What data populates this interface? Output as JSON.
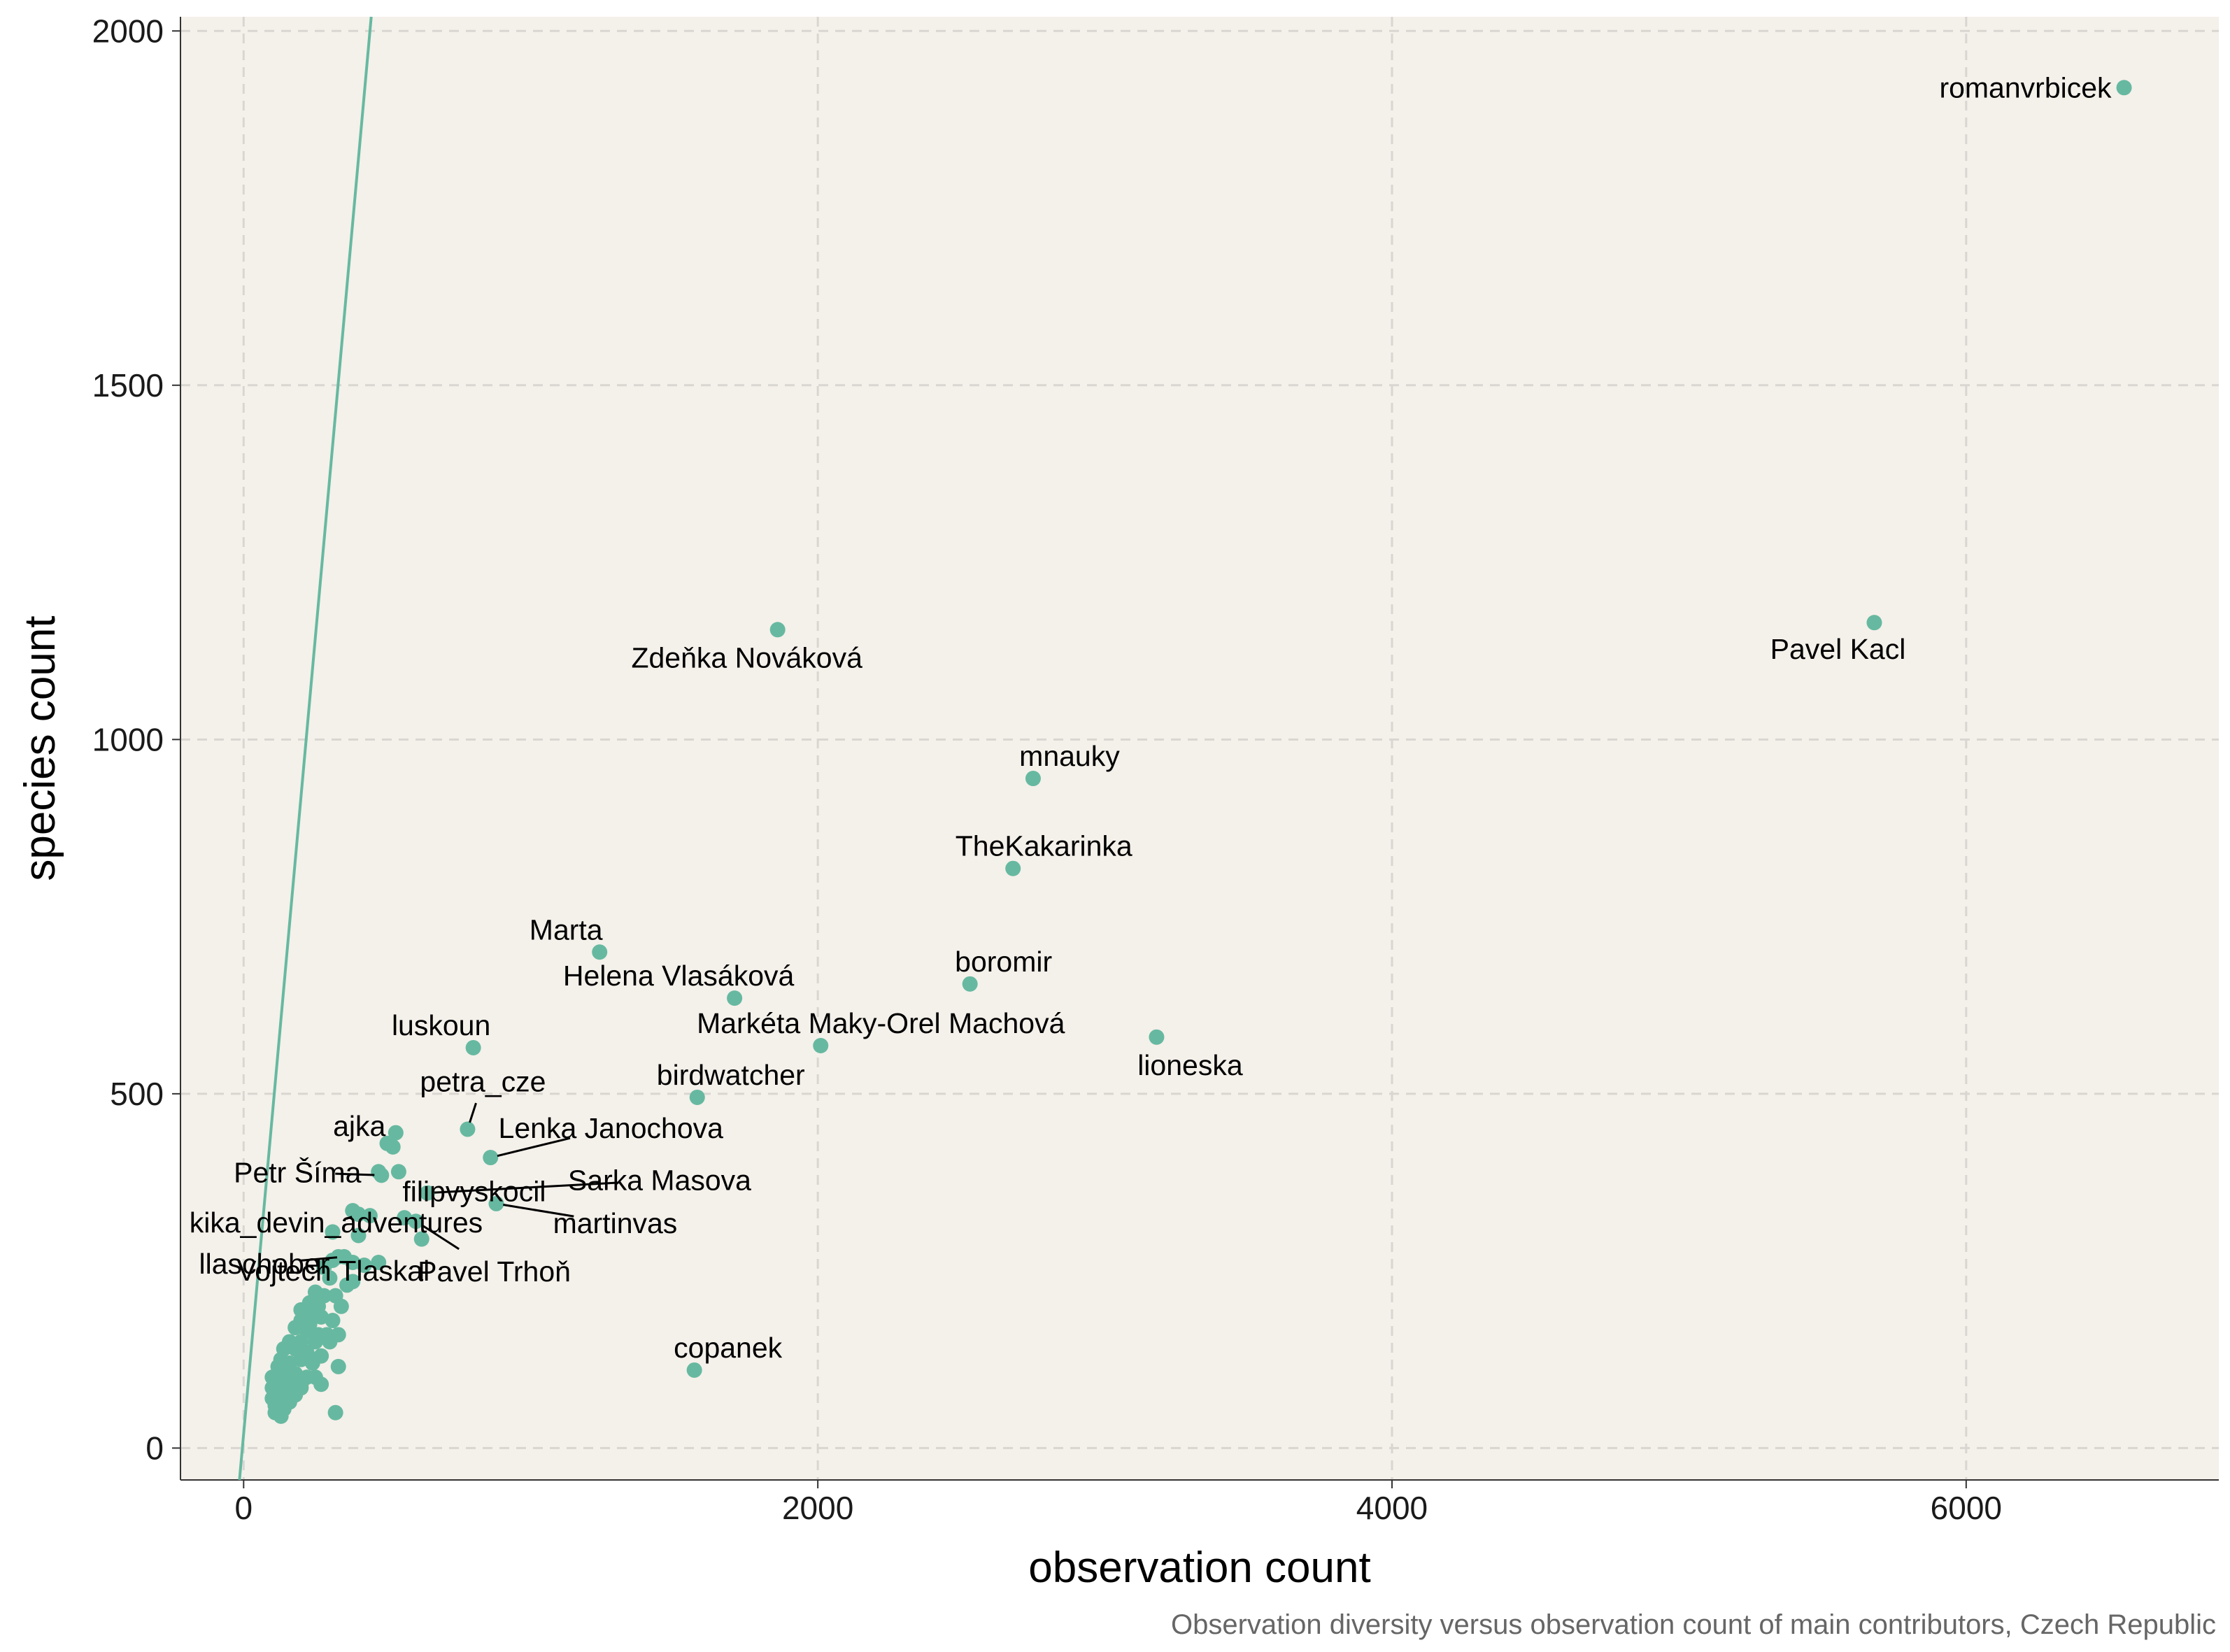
{
  "chart_data": {
    "type": "scatter",
    "title": "",
    "xlabel": "observation count",
    "ylabel": "species count",
    "caption": "Observation diversity versus observation count of main contributors, Czech Republic",
    "xlim": [
      -220,
      6880
    ],
    "ylim": [
      -45,
      2020
    ],
    "xticks": [
      0,
      2000,
      4000,
      6000
    ],
    "yticks": [
      0,
      500,
      1000,
      1500,
      2000
    ],
    "grid": true,
    "legend": "none",
    "colors": {
      "panel_background": "#f4f0ea",
      "point": "#66b9a0",
      "line": "#66b9a0",
      "grid": "#d9d6d1",
      "leader": "#000000"
    },
    "reference_line": {
      "slope": 4.5,
      "intercept": 20
    },
    "labeled_points": [
      {
        "name": "romanvrbicek",
        "x": 6550,
        "y": 1920
      },
      {
        "name": "Pavel Kacl",
        "x": 5680,
        "y": 1165
      },
      {
        "name": "Zdeňka Nováková",
        "x": 1860,
        "y": 1155
      },
      {
        "name": "mnauky",
        "x": 2750,
        "y": 945
      },
      {
        "name": "TheKakarinka",
        "x": 2680,
        "y": 818
      },
      {
        "name": "Marta",
        "x": 1240,
        "y": 700
      },
      {
        "name": "boromir",
        "x": 2530,
        "y": 655
      },
      {
        "name": "Helena Vlasáková",
        "x": 1710,
        "y": 635
      },
      {
        "name": "lioneska",
        "x": 3180,
        "y": 580
      },
      {
        "name": "Markéta Maky-Orel Machová",
        "x": 2010,
        "y": 568
      },
      {
        "name": "luskoun",
        "x": 800,
        "y": 565
      },
      {
        "name": "birdwatcher",
        "x": 1580,
        "y": 495
      },
      {
        "name": "petra_cze",
        "x": 780,
        "y": 450
      },
      {
        "name": "ajka",
        "x": 520,
        "y": 425
      },
      {
        "name": "Lenka Janochova",
        "x": 860,
        "y": 410
      },
      {
        "name": "Petr Šíma",
        "x": 480,
        "y": 385
      },
      {
        "name": "filipvyskocil",
        "x": 540,
        "y": 390
      },
      {
        "name": "Sarka Masova",
        "x": 640,
        "y": 360
      },
      {
        "name": "martinvas",
        "x": 880,
        "y": 345
      },
      {
        "name": "kika_devin_adventures",
        "x": 400,
        "y": 330
      },
      {
        "name": "llaschober",
        "x": 350,
        "y": 270
      },
      {
        "name": "Pavel Trhoň",
        "x": 600,
        "y": 320
      },
      {
        "name": "Vojtech Tlaskal",
        "x": 230,
        "y": 175
      },
      {
        "name": "copanek",
        "x": 1570,
        "y": 110
      }
    ],
    "unlabeled_points": [
      [
        530,
        445
      ],
      [
        500,
        430
      ],
      [
        470,
        390
      ],
      [
        380,
        335
      ],
      [
        440,
        328
      ],
      [
        310,
        305
      ],
      [
        400,
        300
      ],
      [
        560,
        325
      ],
      [
        620,
        295
      ],
      [
        330,
        270
      ],
      [
        310,
        265
      ],
      [
        380,
        262
      ],
      [
        420,
        258
      ],
      [
        470,
        262
      ],
      [
        280,
        255
      ],
      [
        300,
        240
      ],
      [
        360,
        230
      ],
      [
        380,
        235
      ],
      [
        250,
        220
      ],
      [
        280,
        215
      ],
      [
        320,
        215
      ],
      [
        230,
        205
      ],
      [
        260,
        200
      ],
      [
        340,
        200
      ],
      [
        200,
        195
      ],
      [
        230,
        185
      ],
      [
        270,
        185
      ],
      [
        200,
        180
      ],
      [
        310,
        180
      ],
      [
        180,
        170
      ],
      [
        220,
        165
      ],
      [
        260,
        160
      ],
      [
        290,
        160
      ],
      [
        330,
        160
      ],
      [
        160,
        150
      ],
      [
        200,
        150
      ],
      [
        250,
        150
      ],
      [
        300,
        150
      ],
      [
        140,
        140
      ],
      [
        180,
        140
      ],
      [
        220,
        135
      ],
      [
        270,
        130
      ],
      [
        130,
        125
      ],
      [
        160,
        120
      ],
      [
        200,
        125
      ],
      [
        240,
        120
      ],
      [
        120,
        115
      ],
      [
        150,
        105
      ],
      [
        180,
        105
      ],
      [
        220,
        100
      ],
      [
        330,
        115
      ],
      [
        100,
        100
      ],
      [
        130,
        95
      ],
      [
        160,
        90
      ],
      [
        200,
        90
      ],
      [
        270,
        90
      ],
      [
        100,
        85
      ],
      [
        120,
        80
      ],
      [
        150,
        80
      ],
      [
        180,
        75
      ],
      [
        100,
        70
      ],
      [
        130,
        68
      ],
      [
        160,
        65
      ],
      [
        110,
        60
      ],
      [
        140,
        55
      ],
      [
        110,
        50
      ],
      [
        130,
        45
      ],
      [
        320,
        50
      ],
      [
        200,
        85
      ],
      [
        250,
        100
      ]
    ]
  }
}
